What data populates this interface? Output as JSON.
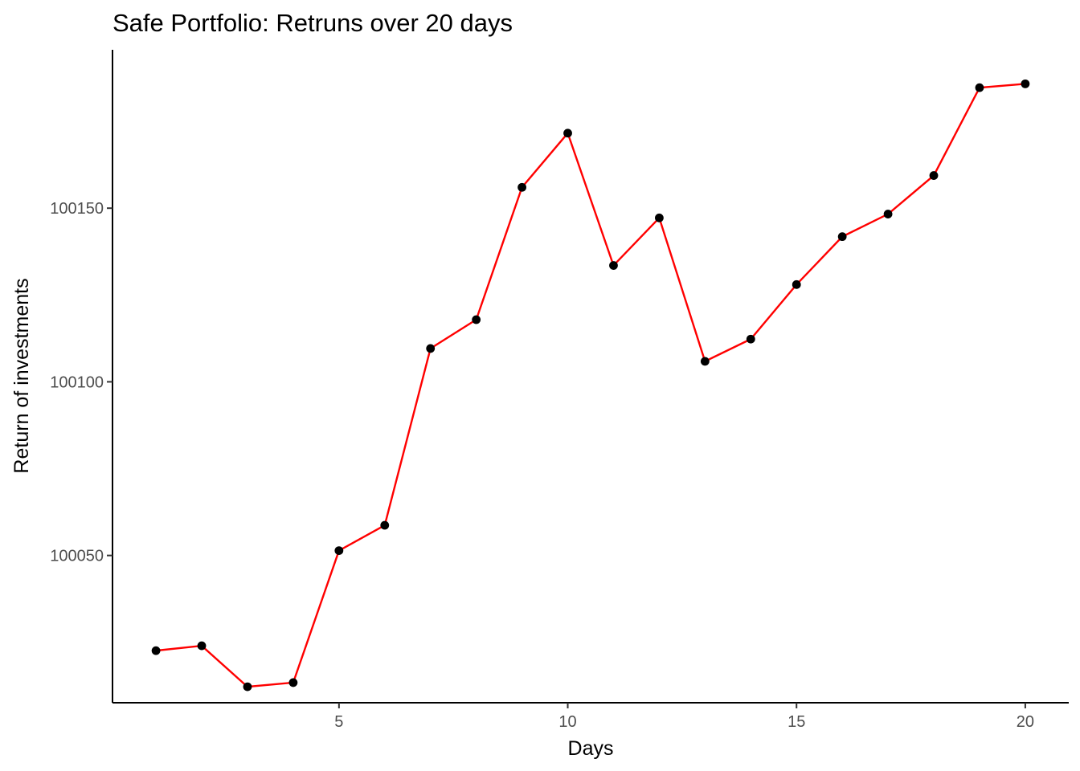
{
  "chart_data": {
    "type": "line",
    "title": "Safe Portfolio: Retruns over 20 days",
    "xlabel": "Days",
    "ylabel": "Return of investments",
    "xlim": [
      0.05,
      20.95
    ],
    "ylim": [
      100007.6,
      100195.6
    ],
    "x_ticks": [
      5,
      10,
      15,
      20
    ],
    "x_tick_labels": [
      "5",
      "10",
      "15",
      "20"
    ],
    "y_ticks": [
      100050,
      100100,
      100150
    ],
    "y_tick_labels": [
      "100050",
      "100100",
      "100150"
    ],
    "grid": false,
    "legend": "none",
    "line_color": "#ff0000",
    "point_color": "#000000",
    "series": [
      {
        "x": [
          1,
          2,
          3,
          4,
          5,
          6,
          7,
          8,
          9,
          10,
          11,
          12,
          13,
          14,
          15,
          16,
          17,
          18,
          19,
          20
        ],
        "y": [
          100022.6,
          100024.0,
          100012.2,
          100013.4,
          100051.4,
          100058.7,
          100109.6,
          100117.9,
          100156.0,
          100171.6,
          100133.5,
          100147.2,
          100105.9,
          100112.3,
          100128.0,
          100141.8,
          100148.3,
          100159.4,
          100184.7,
          100185.8
        ]
      }
    ]
  }
}
